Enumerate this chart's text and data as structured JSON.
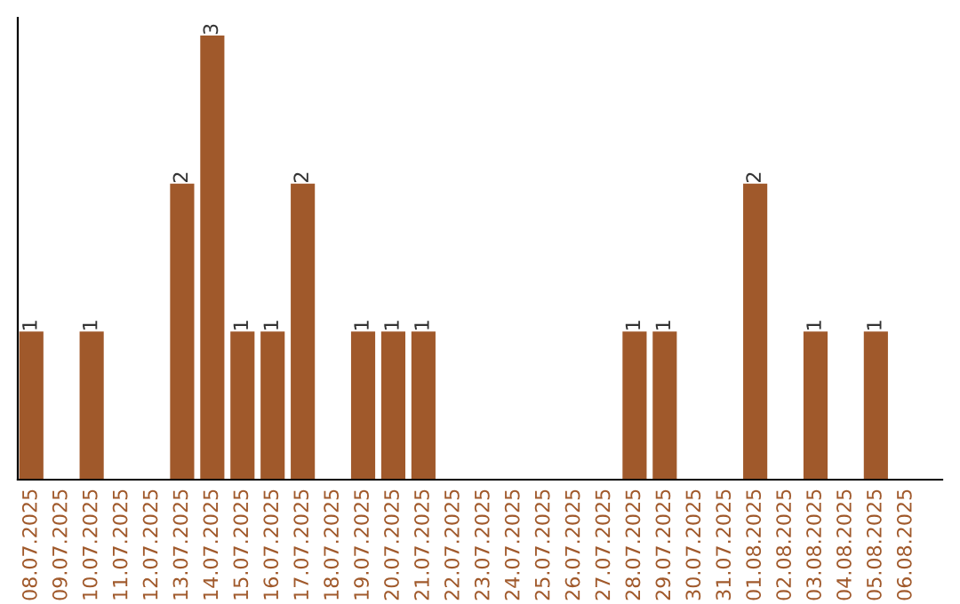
{
  "chart_data": {
    "type": "bar",
    "categories": [
      "08.07.2025",
      "09.07.2025",
      "10.07.2025",
      "11.07.2025",
      "12.07.2025",
      "13.07.2025",
      "14.07.2025",
      "15.07.2025",
      "16.07.2025",
      "17.07.2025",
      "18.07.2025",
      "19.07.2025",
      "20.07.2025",
      "21.07.2025",
      "22.07.2025",
      "23.07.2025",
      "24.07.2025",
      "25.07.2025",
      "26.07.2025",
      "27.07.2025",
      "28.07.2025",
      "29.07.2025",
      "30.07.2025",
      "31.07.2025",
      "01.08.2025",
      "02.08.2025",
      "03.08.2025",
      "04.08.2025",
      "05.08.2025",
      "06.08.2025"
    ],
    "values": [
      1,
      0,
      1,
      0,
      0,
      2,
      3,
      1,
      1,
      2,
      0,
      1,
      1,
      1,
      0,
      0,
      0,
      0,
      0,
      0,
      1,
      1,
      0,
      0,
      2,
      0,
      1,
      0,
      1,
      0
    ],
    "value_labels": [
      "1",
      null,
      "1",
      null,
      null,
      "2",
      "3",
      "1",
      "1",
      "2",
      null,
      "1",
      "1",
      "1",
      null,
      null,
      null,
      null,
      null,
      null,
      "1",
      "1",
      null,
      null,
      "2",
      null,
      "1",
      null,
      "1",
      null
    ],
    "color": "#a0592b",
    "tick_labels": "x",
    "grid": false,
    "legend": false
  }
}
